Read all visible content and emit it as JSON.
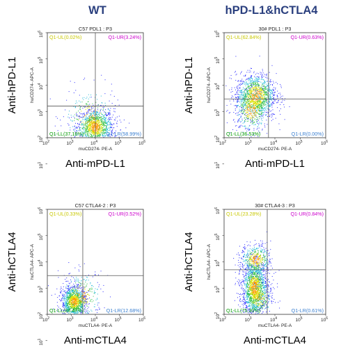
{
  "headers": {
    "left": "WT",
    "right": "hPD-L1&hCTLA4"
  },
  "colors": {
    "header": "#2a3f7e",
    "ul": "#c8c800",
    "ur": "#cc00cc",
    "ll": "#009900",
    "lr": "#3a7fd0",
    "gate": "#555555"
  },
  "chart_data": [
    {
      "id": "tl",
      "type": "scatter",
      "title": "C57 PDL1 : P3",
      "xlabel": "muCD274- PE-A",
      "ylabel": "huCD274- APC-A",
      "big_xlabel": "Anti-mPD-L1",
      "big_ylabel": "Anti-hPD-L1",
      "axis_scale": "log",
      "xlim": [
        100,
        1000000
      ],
      "ylim": [
        100,
        1000000
      ],
      "x_tick_labels": [
        "10",
        "10",
        "10",
        "10",
        "10"
      ],
      "x_tick_exps": [
        "2",
        "3",
        "4",
        "5",
        "6"
      ],
      "y_tick_labels": [
        "10",
        "10",
        "10",
        "10",
        "10",
        "10"
      ],
      "y_tick_exps": [
        "1",
        "2",
        "3",
        "4",
        "5",
        "6"
      ],
      "ytick_log": [
        1,
        2,
        3,
        4,
        5,
        6
      ],
      "quadrant_gate": {
        "x": 10000,
        "y": 1600
      },
      "quadrants": {
        "UL": "Q1-UL(0.02%)",
        "UR": "Q1-UR(3.24%)",
        "LL": "Q1-LL(37.16%)",
        "LR": "Q1-LR(58.99%)"
      },
      "clusters": [
        {
          "cx": 10000,
          "cy": 250,
          "sx": 0.38,
          "sy": 0.35,
          "n": 1200
        },
        {
          "cx": 6000,
          "cy": 600,
          "sx": 0.55,
          "sy": 0.55,
          "n": 260
        }
      ]
    },
    {
      "id": "tr",
      "type": "scatter",
      "title": "30# PDL1 : P3",
      "xlabel": "muCD274- PE-A",
      "ylabel": "huCD274- APC-A",
      "big_xlabel": "Anti-mPD-L1",
      "big_ylabel": "Anti-hPD-L1",
      "axis_scale": "log",
      "xlim": [
        100,
        1000000
      ],
      "ylim": [
        100,
        1000000
      ],
      "x_tick_labels": [
        "10",
        "10",
        "10",
        "10",
        "10"
      ],
      "x_tick_exps": [
        "2",
        "3",
        "4",
        "5",
        "6"
      ],
      "y_tick_labels": [
        "10",
        "10",
        "10",
        "10",
        "10",
        "10"
      ],
      "y_tick_exps": [
        "1",
        "2",
        "3",
        "4",
        "5",
        "6"
      ],
      "ytick_log": [
        1,
        2,
        3,
        4,
        5,
        6
      ],
      "quadrant_gate": {
        "x": 5600,
        "y": 3000
      },
      "quadrants": {
        "UL": "Q1-UL(62.84%)",
        "UR": "Q1-UR(0.63%)",
        "LL": "Q1-LL(36.53%)",
        "LR": "Q1-LR(0.00%)"
      },
      "clusters": [
        {
          "cx": 1800,
          "cy": 4000,
          "sx": 0.4,
          "sy": 0.42,
          "n": 1300
        },
        {
          "cx": 1200,
          "cy": 1200,
          "sx": 0.35,
          "sy": 0.45,
          "n": 500
        }
      ]
    },
    {
      "id": "bl",
      "type": "scatter",
      "title": "C57 CTLA4-2 : P3",
      "xlabel": "muCTLA4- PE-A",
      "ylabel": "huCTLA4- APC-A",
      "big_xlabel": "Anti-mCTLA4",
      "big_ylabel": "Anti-hCTLA4",
      "axis_scale": "log",
      "xlim": [
        100,
        1000000
      ],
      "ylim": [
        100,
        1000000
      ],
      "x_tick_labels": [
        "10",
        "10",
        "10",
        "10",
        "10"
      ],
      "x_tick_exps": [
        "2",
        "3",
        "4",
        "5",
        "6"
      ],
      "y_tick_labels": [
        "10",
        "10",
        "10",
        "10",
        "10",
        "10"
      ],
      "y_tick_exps": [
        "1",
        "2",
        "3",
        "4",
        "5",
        "6"
      ],
      "ytick_log": [
        1,
        2,
        3,
        4,
        5,
        6
      ],
      "quadrant_gate": {
        "x": 3000,
        "y": 3000
      },
      "quadrants": {
        "UL": "Q1-UL(0.33%)",
        "UR": "Q1-UR(0.52%)",
        "LL": "Q1-LL(86.47%)",
        "LR": "Q1-LR(12.68%)"
      },
      "clusters": [
        {
          "cx": 1300,
          "cy": 300,
          "sx": 0.25,
          "sy": 0.3,
          "n": 1100
        },
        {
          "cx": 2500,
          "cy": 500,
          "sx": 0.45,
          "sy": 0.45,
          "n": 350
        }
      ]
    },
    {
      "id": "br",
      "type": "scatter",
      "title": "30# CTLA4-3 : P3",
      "xlabel": "muCTLA4- PE-A",
      "ylabel": "huCTLA4- APC-A",
      "big_xlabel": "Anti-mCTLA4",
      "big_ylabel": "Anti-hCTLA4",
      "axis_scale": "log",
      "xlim": [
        100,
        1000000
      ],
      "ylim": [
        100,
        1000000
      ],
      "x_tick_labels": [
        "10",
        "10",
        "10",
        "10",
        "10"
      ],
      "x_tick_exps": [
        "2",
        "3",
        "4",
        "5",
        "6"
      ],
      "y_tick_labels": [
        "10",
        "10",
        "10",
        "10",
        "10"
      ],
      "y_tick_exps": [
        "2",
        "3",
        "4",
        "5",
        "6"
      ],
      "ytick_log": [
        2,
        3,
        4,
        5,
        6
      ],
      "quadrant_gate": {
        "x": 5000,
        "y": 5000
      },
      "quadrants": {
        "UL": "Q1-UL(23.28%)",
        "UR": "Q1-UR(0.84%)",
        "LL": "Q1-LL(75.30%)",
        "LR": "Q1-LR(0.61%)"
      },
      "clusters": [
        {
          "cx": 1600,
          "cy": 1000,
          "sx": 0.25,
          "sy": 0.5,
          "n": 1500
        },
        {
          "cx": 1800,
          "cy": 12000,
          "sx": 0.3,
          "sy": 0.3,
          "n": 500
        },
        {
          "cx": 2200,
          "cy": 400,
          "sx": 0.3,
          "sy": 0.35,
          "n": 300
        }
      ]
    }
  ]
}
